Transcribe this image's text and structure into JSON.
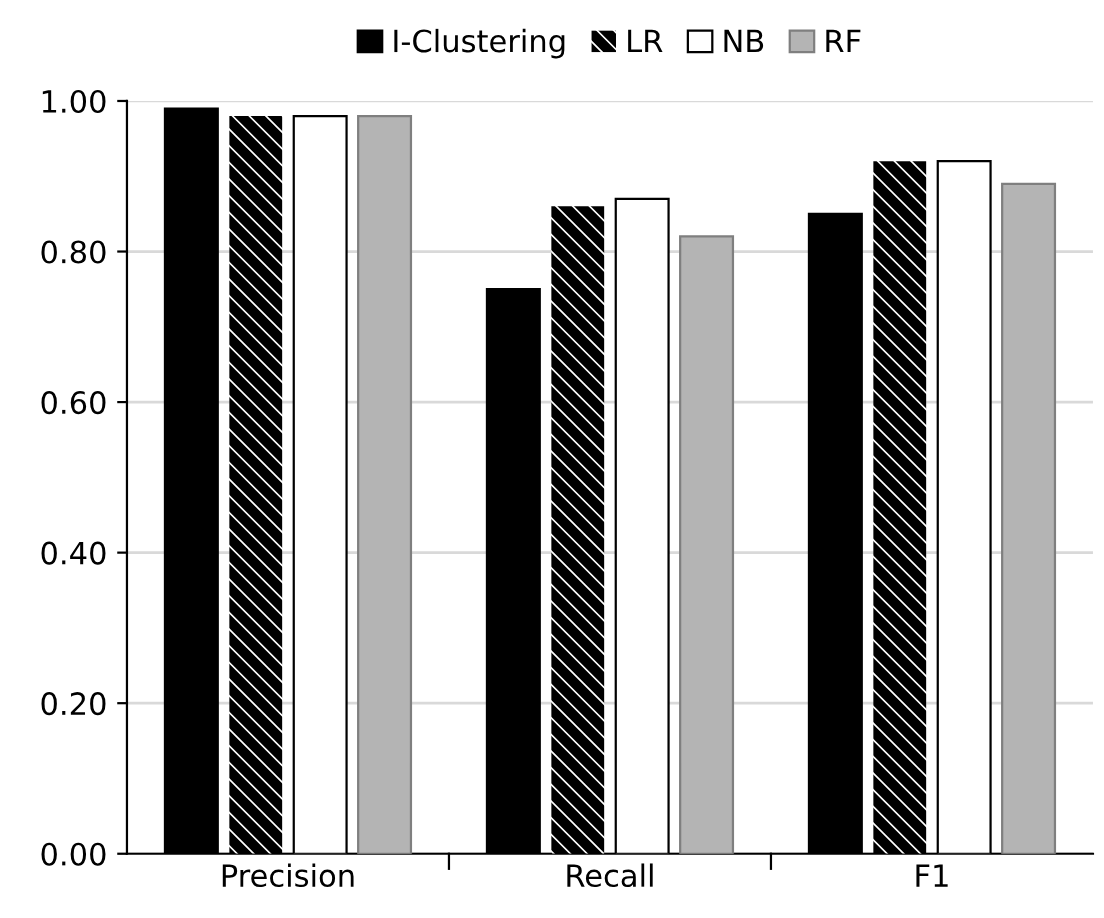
{
  "chart_data": {
    "type": "bar",
    "categories": [
      "Precision",
      "Recall",
      "F1"
    ],
    "series": [
      {
        "name": "I-Clustering",
        "color": "#000000",
        "values": [
          0.99,
          0.75,
          0.85
        ]
      },
      {
        "name": "LR",
        "color": "#000000",
        "values": [
          0.98,
          0.86,
          0.92
        ]
      },
      {
        "name": "NB",
        "color": "#ffffff",
        "values": [
          0.98,
          0.87,
          0.92
        ]
      },
      {
        "name": "RF",
        "color": "#b4b4b4",
        "values": [
          0.98,
          0.82,
          0.89
        ]
      }
    ],
    "ylim": [
      0,
      1
    ],
    "yticks": [
      {
        "value": 0,
        "label": "0.00"
      },
      {
        "value": 0.2,
        "label": "0.20"
      },
      {
        "value": 0.4,
        "label": "0.40"
      },
      {
        "value": 0.6,
        "label": "0.60"
      },
      {
        "value": 0.8,
        "label": "0.80"
      },
      {
        "value": 1,
        "label": "1.00"
      }
    ],
    "grid": "y",
    "legend": "top"
  }
}
